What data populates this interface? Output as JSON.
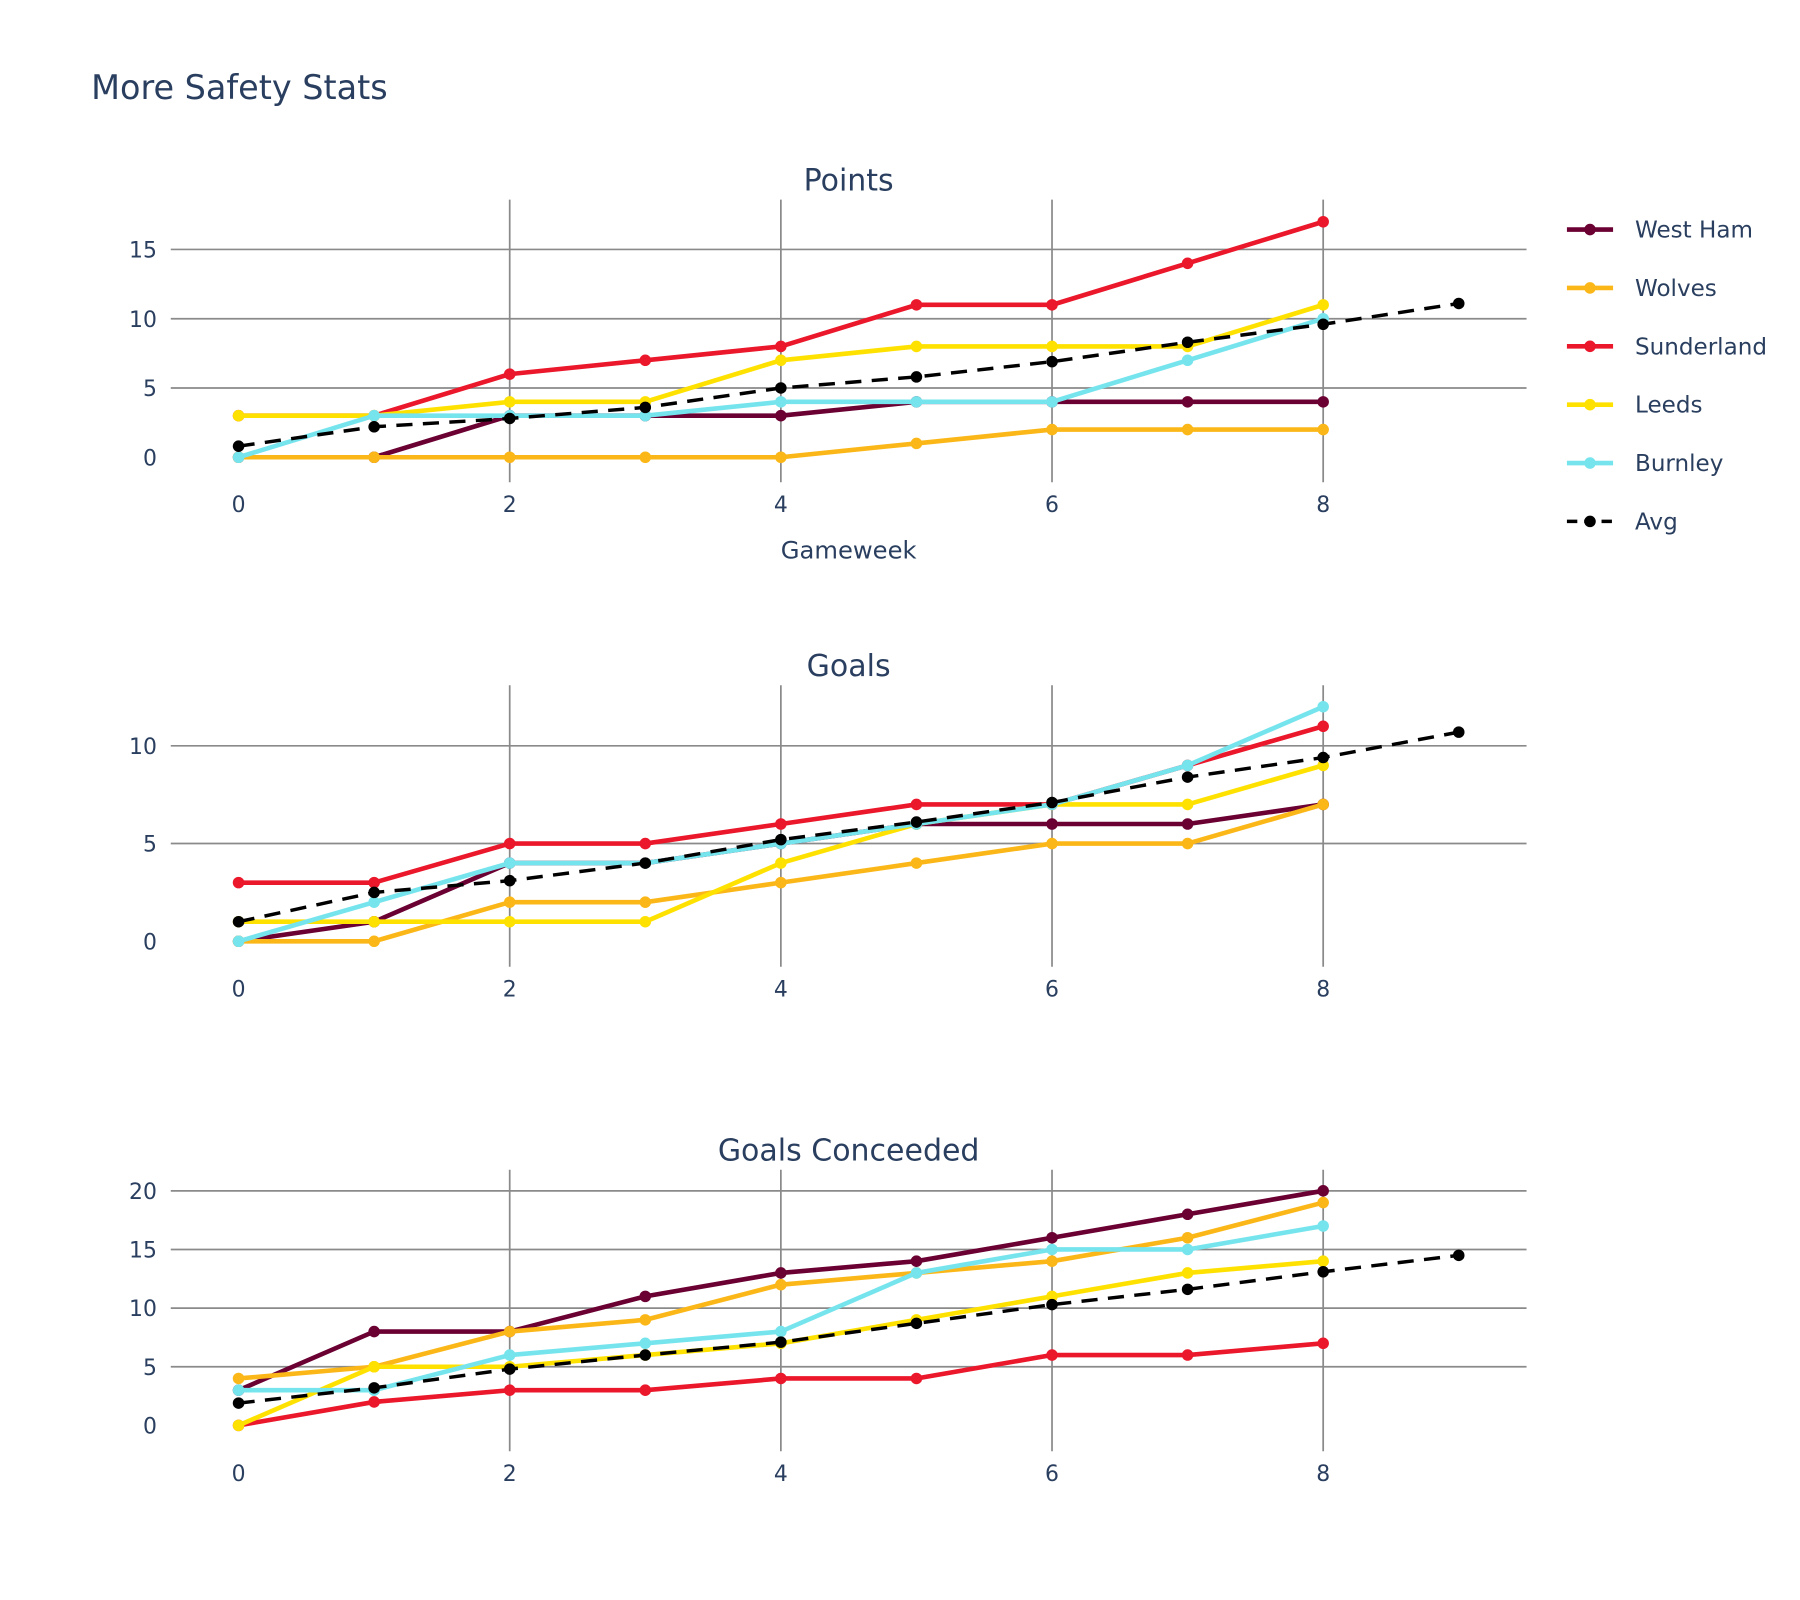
{
  "chart_data": {
    "title": "More Safety Stats",
    "type": "line",
    "legend_position": "right",
    "colors": {
      "West Ham": "#6b0033",
      "Wolves": "#fbb718",
      "Sunderland": "#eb172b",
      "Leeds": "#ffe100",
      "Burnley": "#76e4ed",
      "Avg": "#000000",
      "grid": "#8a8a8a",
      "text": "#2a3f5f"
    },
    "legend": [
      "West Ham",
      "Wolves",
      "Sunderland",
      "Leeds",
      "Burnley",
      "Avg"
    ],
    "panels": [
      {
        "title": "Points",
        "xlabel": "Gameweek",
        "xlim": [
          -0.5,
          9.5
        ],
        "ylim": [
          -1.8,
          18.6
        ],
        "xticks": [
          "0",
          "2",
          "4",
          "6",
          "8"
        ],
        "yticks": [
          "0",
          "5",
          "10",
          "15"
        ],
        "grid": true,
        "x": [
          0,
          1,
          2,
          3,
          4,
          5,
          6,
          7,
          8
        ],
        "series": [
          {
            "name": "West Ham",
            "values": [
              0,
              0,
              3,
              3,
              3,
              4,
              4,
              4,
              4
            ]
          },
          {
            "name": "Wolves",
            "values": [
              0,
              0,
              0,
              0,
              0,
              1,
              2,
              2,
              2
            ]
          },
          {
            "name": "Sunderland",
            "values": [
              3,
              3,
              6,
              7,
              8,
              11,
              11,
              14,
              17
            ]
          },
          {
            "name": "Leeds",
            "values": [
              3,
              3,
              4,
              4,
              7,
              8,
              8,
              8,
              11
            ]
          },
          {
            "name": "Burnley",
            "values": [
              0,
              3,
              3,
              3,
              4,
              4,
              4,
              7,
              10
            ]
          },
          {
            "name": "Avg",
            "dash": true,
            "x": [
              0,
              1,
              2,
              3,
              4,
              5,
              6,
              7,
              8,
              9
            ],
            "values": [
              0.8,
              2.2,
              2.8,
              3.6,
              5.0,
              5.8,
              6.9,
              8.3,
              9.6,
              11.1
            ]
          }
        ]
      },
      {
        "title": "Goals",
        "xlabel": "",
        "xlim": [
          -0.5,
          9.5
        ],
        "ylim": [
          -1.3,
          13.1
        ],
        "xticks": [
          "0",
          "2",
          "4",
          "6",
          "8"
        ],
        "yticks": [
          "0",
          "5",
          "10"
        ],
        "grid": true,
        "x": [
          0,
          1,
          2,
          3,
          4,
          5,
          6,
          7,
          8
        ],
        "series": [
          {
            "name": "West Ham",
            "values": [
              0,
              1,
              4,
              4,
              5,
              6,
              6,
              6,
              7
            ]
          },
          {
            "name": "Wolves",
            "values": [
              0,
              0,
              2,
              2,
              3,
              4,
              5,
              5,
              7
            ]
          },
          {
            "name": "Sunderland",
            "values": [
              3,
              3,
              5,
              5,
              6,
              7,
              7,
              9,
              11
            ]
          },
          {
            "name": "Leeds",
            "values": [
              1,
              1,
              1,
              1,
              4,
              6,
              7,
              7,
              9
            ]
          },
          {
            "name": "Burnley",
            "values": [
              0,
              2,
              4,
              4,
              5,
              6,
              7,
              9,
              12
            ]
          },
          {
            "name": "Avg",
            "dash": true,
            "x": [
              0,
              1,
              2,
              3,
              4,
              5,
              6,
              7,
              8,
              9
            ],
            "values": [
              1.0,
              2.5,
              3.1,
              4.0,
              5.2,
              6.1,
              7.1,
              8.4,
              9.4,
              10.7
            ]
          }
        ]
      },
      {
        "title": "Goals Conceeded",
        "xlabel": "",
        "xlim": [
          -0.5,
          9.5
        ],
        "ylim": [
          -2.2,
          21.8
        ],
        "xticks": [
          "0",
          "2",
          "4",
          "6",
          "8"
        ],
        "yticks": [
          "0",
          "5",
          "10",
          "15",
          "20"
        ],
        "grid": true,
        "x": [
          0,
          1,
          2,
          3,
          4,
          5,
          6,
          7,
          8
        ],
        "series": [
          {
            "name": "West Ham",
            "values": [
              3,
              8,
              8,
              11,
              13,
              14,
              16,
              18,
              20
            ]
          },
          {
            "name": "Wolves",
            "values": [
              4,
              5,
              8,
              9,
              12,
              13,
              14,
              16,
              19
            ]
          },
          {
            "name": "Sunderland",
            "values": [
              0,
              2,
              3,
              3,
              4,
              4,
              6,
              6,
              7
            ]
          },
          {
            "name": "Leeds",
            "values": [
              0,
              5,
              5,
              6,
              7,
              9,
              11,
              13,
              14
            ]
          },
          {
            "name": "Burnley",
            "values": [
              3,
              3,
              6,
              7,
              8,
              13,
              15,
              15,
              17
            ]
          },
          {
            "name": "Avg",
            "dash": true,
            "x": [
              0,
              1,
              2,
              3,
              4,
              5,
              6,
              7,
              8,
              9
            ],
            "values": [
              1.9,
              3.2,
              4.8,
              6.0,
              7.1,
              8.7,
              10.3,
              11.6,
              13.1,
              14.5
            ]
          }
        ]
      }
    ]
  }
}
